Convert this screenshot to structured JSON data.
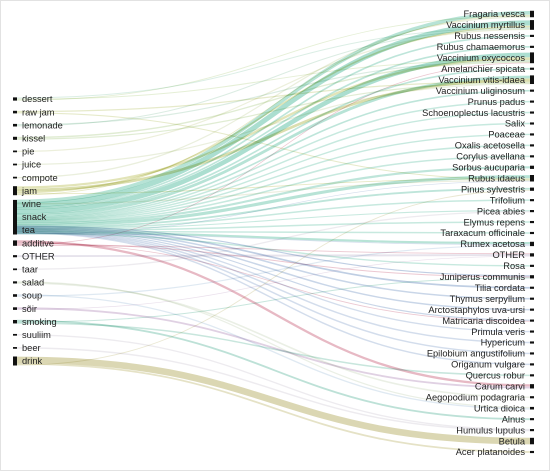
{
  "diagram": {
    "type": "sankey",
    "sources": [
      {
        "id": "dessert",
        "label": "dessert",
        "weight": 1.5
      },
      {
        "id": "raw_jam",
        "label": "raw jam",
        "weight": 1.2
      },
      {
        "id": "lemonade",
        "label": "lemonade",
        "weight": 1.2
      },
      {
        "id": "kissel",
        "label": "kissel",
        "weight": 1.4
      },
      {
        "id": "pie",
        "label": "pie",
        "weight": 0.8
      },
      {
        "id": "juice",
        "label": "juice",
        "weight": 0.8
      },
      {
        "id": "compote",
        "label": "compote",
        "weight": 0.8
      },
      {
        "id": "jam",
        "label": "jam",
        "weight": 4
      },
      {
        "id": "wine",
        "label": "wine",
        "weight": 0.8
      },
      {
        "id": "snack",
        "label": "snack",
        "weight": 16
      },
      {
        "id": "tea",
        "label": "tea",
        "weight": 5
      },
      {
        "id": "additive",
        "label": "additive",
        "weight": 2.5
      },
      {
        "id": "OTHER_l",
        "label": "OTHER",
        "weight": 1
      },
      {
        "id": "taar",
        "label": "taar",
        "weight": 0.8
      },
      {
        "id": "salad",
        "label": "salad",
        "weight": 1
      },
      {
        "id": "soup",
        "label": "soup",
        "weight": 1.2
      },
      {
        "id": "soir",
        "label": "sõir",
        "weight": 1.2
      },
      {
        "id": "smoking",
        "label": "smoking",
        "weight": 1.6
      },
      {
        "id": "suuliim",
        "label": "suuliim",
        "weight": 0.8
      },
      {
        "id": "beer",
        "label": "beer",
        "weight": 0.8
      },
      {
        "id": "drink",
        "label": "drink",
        "weight": 4
      }
    ],
    "targets": [
      {
        "id": "fragaria",
        "label": "Fragaria vesca",
        "weight": 3
      },
      {
        "id": "myrtillus",
        "label": "Vaccinium myrtillus",
        "weight": 4.5
      },
      {
        "id": "nessensis",
        "label": "Rubus nessensis",
        "weight": 1
      },
      {
        "id": "chamaemorus",
        "label": "Rubus chamaemorus",
        "weight": 1
      },
      {
        "id": "oxycoccos",
        "label": "Vaccinium oxycoccos",
        "weight": 5
      },
      {
        "id": "amelanchier",
        "label": "Amelanchier spicata",
        "weight": 1
      },
      {
        "id": "vitis",
        "label": "Vaccinium vitis-idaea",
        "weight": 4
      },
      {
        "id": "uliginosum",
        "label": "Vaccinium uliginosum",
        "weight": 1
      },
      {
        "id": "prunus",
        "label": "Prunus padus",
        "weight": 1
      },
      {
        "id": "schoenoplectus",
        "label": "Schoenoplectus lacustris",
        "weight": 1
      },
      {
        "id": "salix",
        "label": "Salix",
        "weight": 1
      },
      {
        "id": "poaceae",
        "label": "Poaceae",
        "weight": 1
      },
      {
        "id": "oxalis",
        "label": "Oxalis acetosella",
        "weight": 1
      },
      {
        "id": "corylus",
        "label": "Corylus avellana",
        "weight": 1
      },
      {
        "id": "sorbus",
        "label": "Sorbus aucuparia",
        "weight": 1.5
      },
      {
        "id": "idaeus",
        "label": "Rubus idaeus",
        "weight": 3
      },
      {
        "id": "pinus",
        "label": "Pinus sylvestris",
        "weight": 1.5
      },
      {
        "id": "trifolium",
        "label": "Trifolium",
        "weight": 1
      },
      {
        "id": "picea",
        "label": "Picea abies",
        "weight": 1
      },
      {
        "id": "elymus",
        "label": "Elymus repens",
        "weight": 1
      },
      {
        "id": "taraxacum",
        "label": "Taraxacum officinale",
        "weight": 1
      },
      {
        "id": "rumex",
        "label": "Rumex acetosa",
        "weight": 2
      },
      {
        "id": "OTHER_r",
        "label": "OTHER",
        "weight": 1.5
      },
      {
        "id": "rosa",
        "label": "Rosa",
        "weight": 1
      },
      {
        "id": "juniperus",
        "label": "Juniperus communis",
        "weight": 1.5
      },
      {
        "id": "tilia",
        "label": "Tilia cordata",
        "weight": 1
      },
      {
        "id": "thymus",
        "label": "Thymus serpyllum",
        "weight": 1
      },
      {
        "id": "arctostaphylos",
        "label": "Arctostaphylos uva-ursi",
        "weight": 1
      },
      {
        "id": "matricaria",
        "label": "Matricaria discoidea",
        "weight": 1
      },
      {
        "id": "primula",
        "label": "Primula veris",
        "weight": 1
      },
      {
        "id": "hypericum",
        "label": "Hypericum",
        "weight": 1
      },
      {
        "id": "epilobium",
        "label": "Epilobium angustifolium",
        "weight": 1
      },
      {
        "id": "origanum",
        "label": "Origanum vulgare",
        "weight": 1
      },
      {
        "id": "quercus",
        "label": "Quercus robur",
        "weight": 1
      },
      {
        "id": "carum",
        "label": "Carum carvi",
        "weight": 2
      },
      {
        "id": "aegopodium",
        "label": "Aegopodium podagraria",
        "weight": 1
      },
      {
        "id": "urtica",
        "label": "Urtica dioica",
        "weight": 1.2
      },
      {
        "id": "alnus",
        "label": "Alnus",
        "weight": 1
      },
      {
        "id": "humulus",
        "label": "Humulus lupulus",
        "weight": 1
      },
      {
        "id": "betula",
        "label": "Betula",
        "weight": 3
      },
      {
        "id": "acer",
        "label": "Acer platanoides",
        "weight": 1
      }
    ],
    "links": [
      {
        "source": "snack",
        "target": "fragaria",
        "value": 2.2,
        "color": "#9fd9c8"
      },
      {
        "source": "snack",
        "target": "myrtillus",
        "value": 3.2,
        "color": "#8fd3c0"
      },
      {
        "source": "snack",
        "target": "nessensis",
        "value": 0.8,
        "color": "#a8dccd"
      },
      {
        "source": "snack",
        "target": "chamaemorus",
        "value": 0.8,
        "color": "#a8dccd"
      },
      {
        "source": "snack",
        "target": "oxycoccos",
        "value": 3.0,
        "color": "#8fd3c0"
      },
      {
        "source": "snack",
        "target": "amelanchier",
        "value": 0.8,
        "color": "#a8dccd"
      },
      {
        "source": "snack",
        "target": "vitis",
        "value": 1.8,
        "color": "#9fd9c8"
      },
      {
        "source": "snack",
        "target": "uliginosum",
        "value": 0.8,
        "color": "#a8dccd"
      },
      {
        "source": "snack",
        "target": "prunus",
        "value": 0.6,
        "color": "#b4e1d4"
      },
      {
        "source": "snack",
        "target": "schoenoplectus",
        "value": 0.6,
        "color": "#b4e1d4"
      },
      {
        "source": "snack",
        "target": "salix",
        "value": 0.5,
        "color": "#b4e1d4"
      },
      {
        "source": "snack",
        "target": "poaceae",
        "value": 0.5,
        "color": "#b4e1d4"
      },
      {
        "source": "snack",
        "target": "oxalis",
        "value": 0.7,
        "color": "#b4e1d4"
      },
      {
        "source": "snack",
        "target": "corylus",
        "value": 0.7,
        "color": "#b4e1d4"
      },
      {
        "source": "snack",
        "target": "sorbus",
        "value": 0.8,
        "color": "#a8dccd"
      },
      {
        "source": "snack",
        "target": "idaeus",
        "value": 2.0,
        "color": "#9fd9c8"
      },
      {
        "source": "snack",
        "target": "pinus",
        "value": 1.0,
        "color": "#a8dccd"
      },
      {
        "source": "snack",
        "target": "trifolium",
        "value": 0.6,
        "color": "#b4e1d4"
      },
      {
        "source": "snack",
        "target": "picea",
        "value": 0.6,
        "color": "#b4e1d4"
      },
      {
        "source": "snack",
        "target": "elymus",
        "value": 0.6,
        "color": "#b4e1d4"
      },
      {
        "source": "snack",
        "target": "taraxacum",
        "value": 0.5,
        "color": "#b4e1d4"
      },
      {
        "source": "snack",
        "target": "rumex",
        "value": 1.2,
        "color": "#9fd9c8"
      },
      {
        "source": "snack",
        "target": "rosa",
        "value": 0.5,
        "color": "#b4e1d4"
      },
      {
        "source": "jam",
        "target": "oxycoccos",
        "value": 1.2,
        "color": "#d8dba0"
      },
      {
        "source": "jam",
        "target": "vitis",
        "value": 1.4,
        "color": "#cfd393"
      },
      {
        "source": "jam",
        "target": "myrtillus",
        "value": 0.8,
        "color": "#d8dba0"
      },
      {
        "source": "jam",
        "target": "idaeus",
        "value": 0.5,
        "color": "#e0e2b3"
      },
      {
        "source": "jam",
        "target": "fragaria",
        "value": 0.4,
        "color": "#e0e2b3"
      },
      {
        "source": "dessert",
        "target": "myrtillus",
        "value": 0.5,
        "color": "#cfe8dc"
      },
      {
        "source": "dessert",
        "target": "oxycoccos",
        "value": 0.5,
        "color": "#dce9c8"
      },
      {
        "source": "dessert",
        "target": "fragaria",
        "value": 0.4,
        "color": "#dce9c8"
      },
      {
        "source": "raw_jam",
        "target": "vitis",
        "value": 0.6,
        "color": "#dde3b8"
      },
      {
        "source": "raw_jam",
        "target": "idaeus",
        "value": 0.5,
        "color": "#dde3b8"
      },
      {
        "source": "lemonade",
        "target": "oxycoccos",
        "value": 0.6,
        "color": "#cfe6d8"
      },
      {
        "source": "lemonade",
        "target": "myrtillus",
        "value": 0.5,
        "color": "#cfe6d8"
      },
      {
        "source": "kissel",
        "target": "oxycoccos",
        "value": 0.7,
        "color": "#d6e5c4"
      },
      {
        "source": "kissel",
        "target": "vitis",
        "value": 0.6,
        "color": "#d6e5c4"
      },
      {
        "source": "pie",
        "target": "myrtillus",
        "value": 0.4,
        "color": "#e6e9cf"
      },
      {
        "source": "juice",
        "target": "vitis",
        "value": 0.4,
        "color": "#e3ead2"
      },
      {
        "source": "compote",
        "target": "fragaria",
        "value": 0.4,
        "color": "#e3ead2"
      },
      {
        "source": "wine",
        "target": "idaeus",
        "value": 0.4,
        "color": "#e7e9d6"
      },
      {
        "source": "tea",
        "target": "juniperus",
        "value": 0.7,
        "color": "#a9bdd9"
      },
      {
        "source": "tea",
        "target": "tilia",
        "value": 0.8,
        "color": "#a9bdd9"
      },
      {
        "source": "tea",
        "target": "thymus",
        "value": 0.6,
        "color": "#b7c8e0"
      },
      {
        "source": "tea",
        "target": "arctostaphylos",
        "value": 0.5,
        "color": "#b7c8e0"
      },
      {
        "source": "tea",
        "target": "matricaria",
        "value": 0.6,
        "color": "#b7c8e0"
      },
      {
        "source": "tea",
        "target": "primula",
        "value": 0.4,
        "color": "#c4d2e6"
      },
      {
        "source": "tea",
        "target": "hypericum",
        "value": 0.5,
        "color": "#c4d2e6"
      },
      {
        "source": "tea",
        "target": "epilobium",
        "value": 0.5,
        "color": "#c4d2e6"
      },
      {
        "source": "tea",
        "target": "origanum",
        "value": 0.5,
        "color": "#c4d2e6"
      },
      {
        "source": "tea",
        "target": "rumex",
        "value": 0.4,
        "color": "#c4d2e6"
      },
      {
        "source": "tea",
        "target": "idaeus",
        "value": 0.4,
        "color": "#c4d2e6"
      },
      {
        "source": "additive",
        "target": "carum",
        "value": 1.0,
        "color": "#dfa1b0"
      },
      {
        "source": "additive",
        "target": "matricaria",
        "value": 0.4,
        "color": "#e6b6c2"
      },
      {
        "source": "additive",
        "target": "juniperus",
        "value": 0.5,
        "color": "#e6b6c2"
      },
      {
        "source": "additive",
        "target": "oxycoccos",
        "value": 0.4,
        "color": "#e6b6c2"
      },
      {
        "source": "additive",
        "target": "OTHER_r",
        "value": 0.4,
        "color": "#e6b6c2"
      },
      {
        "source": "OTHER_l",
        "target": "OTHER_r",
        "value": 0.8,
        "color": "#ddd9e6"
      },
      {
        "source": "taar",
        "target": "picea",
        "value": 0.4,
        "color": "#e7e4ea"
      },
      {
        "source": "salad",
        "target": "urtica",
        "value": 0.5,
        "color": "#e3eadc"
      },
      {
        "source": "salad",
        "target": "aegopodium",
        "value": 0.4,
        "color": "#e3eadc"
      },
      {
        "source": "soup",
        "target": "urtica",
        "value": 0.5,
        "color": "#d4e2ee"
      },
      {
        "source": "soup",
        "target": "rumex",
        "value": 0.5,
        "color": "#d4e2ee"
      },
      {
        "source": "soir",
        "target": "carum",
        "value": 0.7,
        "color": "#d5c2d9"
      },
      {
        "source": "soir",
        "target": "OTHER_r",
        "value": 0.3,
        "color": "#e3d6e6"
      },
      {
        "source": "smoking",
        "target": "alnus",
        "value": 0.7,
        "color": "#a7d7c9"
      },
      {
        "source": "smoking",
        "target": "juniperus",
        "value": 0.5,
        "color": "#b6ddd2"
      },
      {
        "source": "smoking",
        "target": "quercus",
        "value": 0.4,
        "color": "#b6ddd2"
      },
      {
        "source": "suuliim",
        "target": "humulus",
        "value": 0.4,
        "color": "#e7e4ea"
      },
      {
        "source": "beer",
        "target": "humulus",
        "value": 0.5,
        "color": "#e7e4ea"
      },
      {
        "source": "drink",
        "target": "betula",
        "value": 3.0,
        "color": "#cfc99a"
      },
      {
        "source": "drink",
        "target": "acer",
        "value": 0.6,
        "color": "#dcd8b3"
      },
      {
        "source": "drink",
        "target": "pinus",
        "value": 0.4,
        "color": "#e3e0c4"
      }
    ]
  }
}
